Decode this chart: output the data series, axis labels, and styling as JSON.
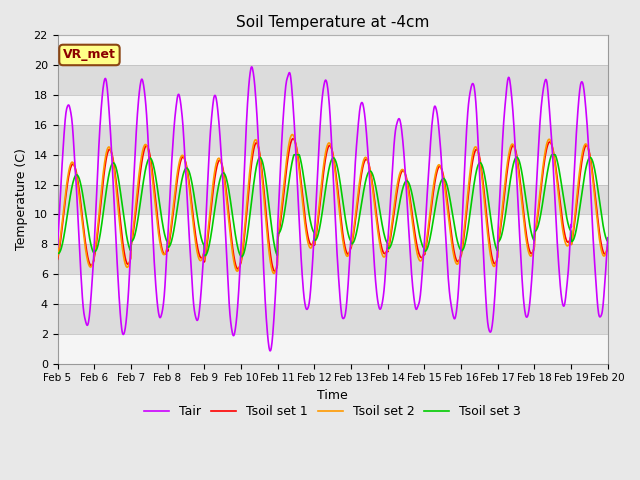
{
  "title": "Soil Temperature at -4cm",
  "xlabel": "Time",
  "ylabel": "Temperature (C)",
  "ylim": [
    0,
    22
  ],
  "yticks": [
    0,
    2,
    4,
    6,
    8,
    10,
    12,
    14,
    16,
    18,
    20,
    22
  ],
  "x_tick_labels": [
    "Feb 5",
    "Feb 6",
    "Feb 7",
    "Feb 8",
    "Feb 9",
    "Feb 10",
    "Feb 11",
    "Feb 12",
    "Feb 13",
    "Feb 14",
    "Feb 15",
    "Feb 16",
    "Feb 17",
    "Feb 18",
    "Feb 19",
    "Feb 20"
  ],
  "colors": {
    "Tair": "#cc00ff",
    "Tsoil1": "#ff0000",
    "Tsoil2": "#ff9900",
    "Tsoil3": "#00cc00"
  },
  "legend_labels": [
    "Tair",
    "Tsoil set 1",
    "Tsoil set 2",
    "Tsoil set 3"
  ],
  "annotation_text": "VR_met",
  "fig_bg_color": "#e8e8e8",
  "stripe_light": "#f5f5f5",
  "stripe_dark": "#dcdcdc",
  "linewidth": 1.2
}
